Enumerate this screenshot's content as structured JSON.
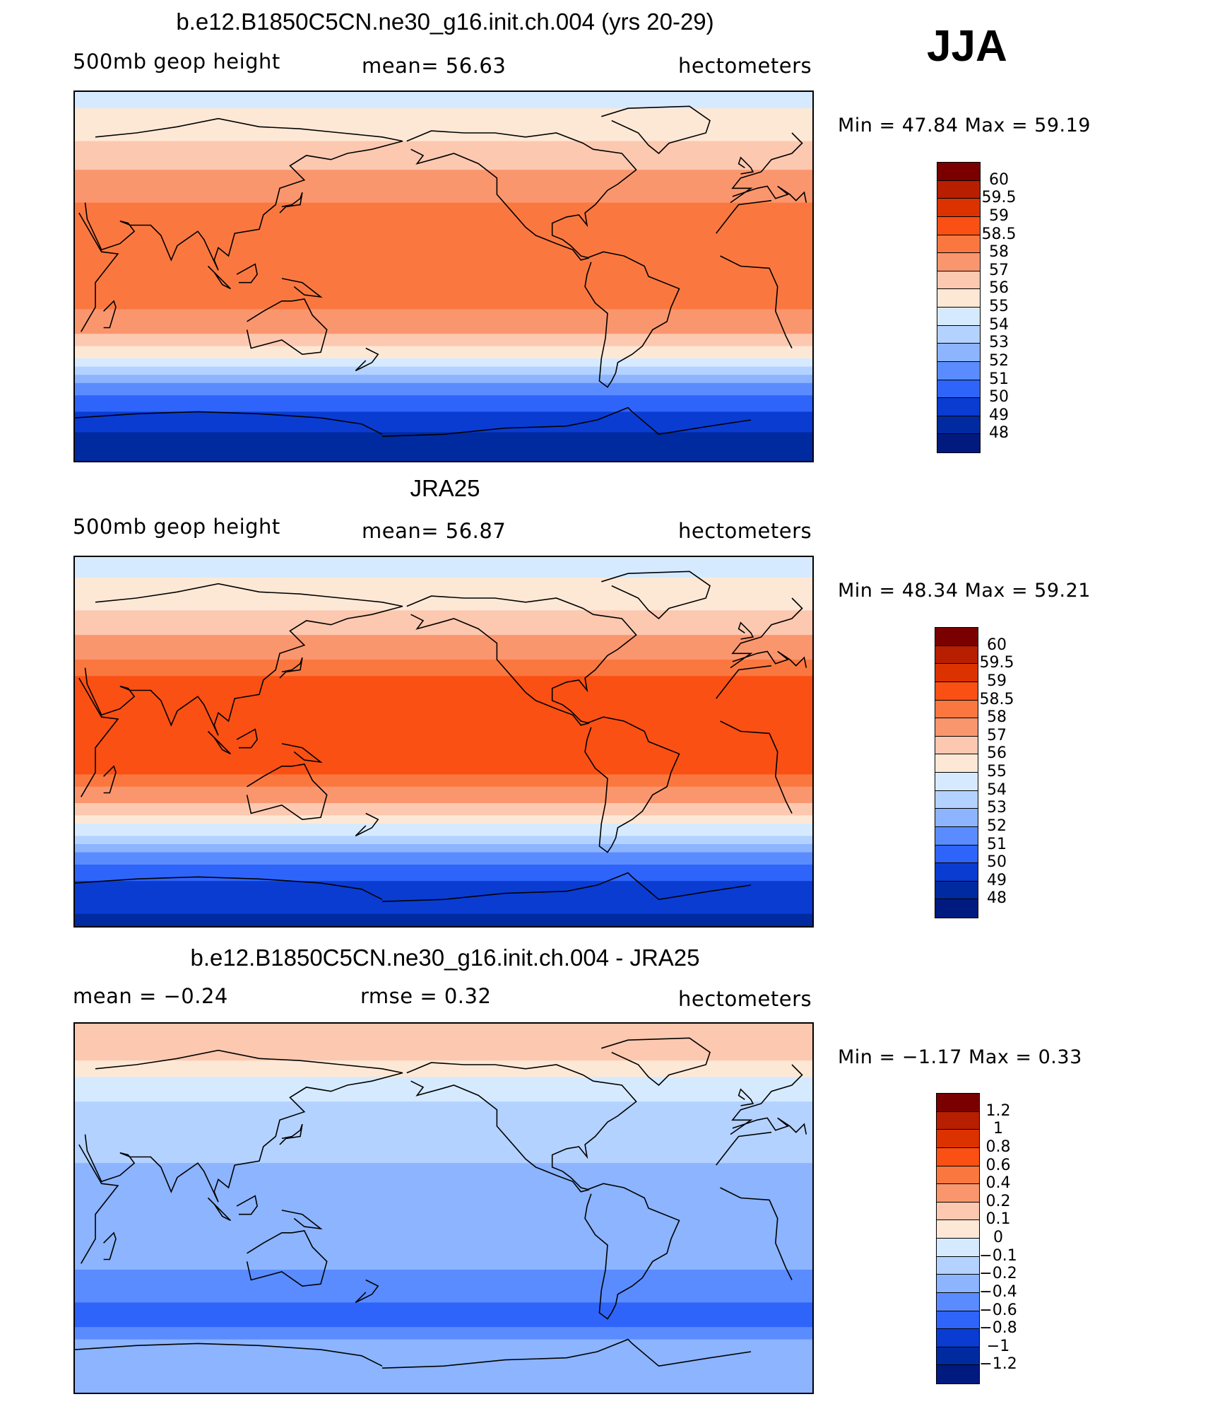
{
  "season": "JJA",
  "panels": [
    {
      "title": "b.e12.B1850C5CN.ne30_g16.init.ch.004 (yrs 20-29)",
      "left_label": "500mb  geop  height",
      "center_label": "mean=   56.63",
      "right_label": "hectometers",
      "minmax": "Min  =    47.84  Max  =    59.19",
      "colorbar_labels": [
        "60",
        "59.5",
        "59",
        "58.5",
        "58",
        "57",
        "56",
        "55",
        "54",
        "53",
        "52",
        "51",
        "50",
        "49",
        "48"
      ]
    },
    {
      "title": "JRA25",
      "left_label": "500mb  geop  height",
      "center_label": "mean=   56.87",
      "right_label": "hectometers",
      "minmax": "Min  =    48.34  Max  =    59.21",
      "colorbar_labels": [
        "60",
        "59.5",
        "59",
        "58.5",
        "58",
        "57",
        "56",
        "55",
        "54",
        "53",
        "52",
        "51",
        "50",
        "49",
        "48"
      ]
    },
    {
      "title": "b.e12.B1850C5CN.ne30_g16.init.ch.004 - JRA25",
      "left_label": "mean  =    −0.24",
      "center_label": "rmse  =     0.32",
      "right_label": "hectometers",
      "minmax": "Min  =   −1.17  Max  =     0.33",
      "colorbar_labels": [
        "1.2",
        "1",
        "0.8",
        "0.6",
        "0.4",
        "0.2",
        "0.1",
        "0",
        "−0.1",
        "−0.2",
        "−0.4",
        "−0.6",
        "−0.8",
        "−1",
        "−1.2"
      ]
    }
  ],
  "colors": [
    "#7a0000",
    "#b81e00",
    "#dc3200",
    "#fa5014",
    "#fa7840",
    "#fa966e",
    "#fcc8b0",
    "#fde8d6",
    "#d6eaff",
    "#b4d2ff",
    "#8cb4ff",
    "#5a8cff",
    "#2e64fa",
    "#0a3cd2",
    "#002aa0",
    "#001a80"
  ],
  "chart_data": [
    {
      "type": "heatmap",
      "title": "b.e12.B1850C5CN.ne30_g16.init.ch.004 (yrs 20-29)",
      "variable": "500mb geop height",
      "units": "hectometers",
      "mean": 56.63,
      "min": 47.84,
      "max": 59.19,
      "levels": [
        48,
        49,
        50,
        51,
        52,
        53,
        54,
        55,
        56,
        57,
        58,
        58.5,
        59,
        59.5,
        60
      ],
      "zonal_profile": [
        {
          "lat": 90,
          "value": 54.5
        },
        {
          "lat": 75,
          "value": 55.5
        },
        {
          "lat": 60,
          "value": 56.3
        },
        {
          "lat": 45,
          "value": 57.5
        },
        {
          "lat": 30,
          "value": 58.4
        },
        {
          "lat": 15,
          "value": 58.2
        },
        {
          "lat": 0,
          "value": 58.1
        },
        {
          "lat": -15,
          "value": 58.0
        },
        {
          "lat": -25,
          "value": 57.3
        },
        {
          "lat": -35,
          "value": 55.8
        },
        {
          "lat": -45,
          "value": 53.8
        },
        {
          "lat": -55,
          "value": 51.5
        },
        {
          "lat": -65,
          "value": 50.0
        },
        {
          "lat": -75,
          "value": 49.0
        },
        {
          "lat": -90,
          "value": 48.5
        }
      ]
    },
    {
      "type": "heatmap",
      "title": "JRA25",
      "variable": "500mb geop height",
      "units": "hectometers",
      "mean": 56.87,
      "min": 48.34,
      "max": 59.21,
      "levels": [
        48,
        49,
        50,
        51,
        52,
        53,
        54,
        55,
        56,
        57,
        58,
        58.5,
        59,
        59.5,
        60
      ],
      "zonal_profile": [
        {
          "lat": 90,
          "value": 54.3
        },
        {
          "lat": 75,
          "value": 55.3
        },
        {
          "lat": 60,
          "value": 56.2
        },
        {
          "lat": 45,
          "value": 57.6
        },
        {
          "lat": 30,
          "value": 58.6
        },
        {
          "lat": 15,
          "value": 58.7
        },
        {
          "lat": 0,
          "value": 58.6
        },
        {
          "lat": -15,
          "value": 58.5
        },
        {
          "lat": -25,
          "value": 57.8
        },
        {
          "lat": -35,
          "value": 56.0
        },
        {
          "lat": -45,
          "value": 54.0
        },
        {
          "lat": -55,
          "value": 51.8
        },
        {
          "lat": -65,
          "value": 50.3
        },
        {
          "lat": -75,
          "value": 49.3
        },
        {
          "lat": -90,
          "value": 48.8
        }
      ]
    },
    {
      "type": "heatmap",
      "title": "b.e12.B1850C5CN.ne30_g16.init.ch.004 - JRA25",
      "variable": "500mb geop height difference",
      "units": "hectometers",
      "mean": -0.24,
      "rmse": 0.32,
      "min": -1.17,
      "max": 0.33,
      "levels": [
        -1.2,
        -1,
        -0.8,
        -0.6,
        -0.4,
        -0.2,
        -0.1,
        0,
        0.1,
        0.2,
        0.4,
        0.6,
        0.8,
        1,
        1.2
      ],
      "zonal_profile": [
        {
          "lat": 90,
          "value": 0.15
        },
        {
          "lat": 75,
          "value": 0.15
        },
        {
          "lat": 60,
          "value": -0.05
        },
        {
          "lat": 45,
          "value": -0.15
        },
        {
          "lat": 30,
          "value": -0.15
        },
        {
          "lat": 15,
          "value": -0.25
        },
        {
          "lat": 0,
          "value": -0.3
        },
        {
          "lat": -15,
          "value": -0.3
        },
        {
          "lat": -25,
          "value": -0.35
        },
        {
          "lat": -35,
          "value": -0.45
        },
        {
          "lat": -45,
          "value": -0.6
        },
        {
          "lat": -55,
          "value": -0.7
        },
        {
          "lat": -65,
          "value": -0.35
        },
        {
          "lat": -75,
          "value": -0.3
        },
        {
          "lat": -90,
          "value": -0.35
        }
      ]
    }
  ]
}
